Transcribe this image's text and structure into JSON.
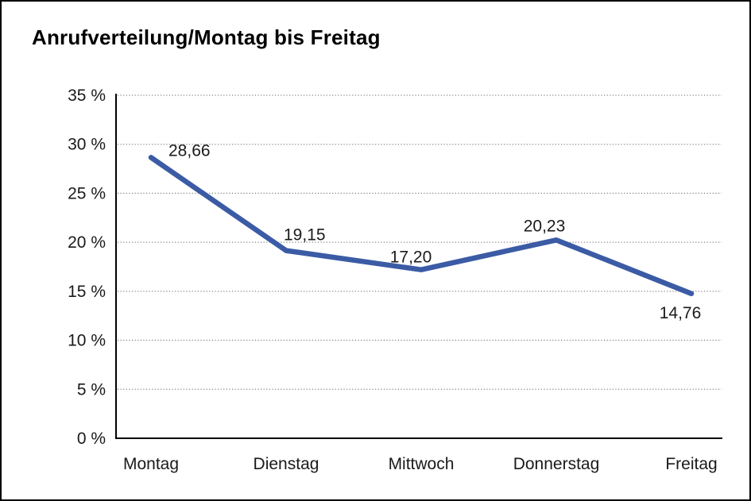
{
  "title": "Anrufverteilung/Montag bis Freitag",
  "colors": {
    "line": "#3B5BA5",
    "axis": "#000000",
    "grid": "#848484",
    "text": "#1a1a1a",
    "background": "#ffffff",
    "frame_border": "#000000"
  },
  "chart_data": {
    "type": "line",
    "title": "Anrufverteilung/Montag bis Freitag",
    "categories": [
      "Montag",
      "Dienstag",
      "Mittwoch",
      "Donnerstag",
      "Freitag"
    ],
    "series": [
      {
        "name": "Anrufverteilung",
        "values": [
          28.66,
          19.15,
          17.2,
          20.23,
          14.76
        ]
      }
    ],
    "data_labels": [
      "28,66",
      "19,15",
      "17,20",
      "20,23",
      "14,76"
    ],
    "ylabel": "",
    "xlabel": "",
    "ylim": [
      0,
      35
    ],
    "y_tick_step": 5,
    "y_tick_labels": [
      "0 %",
      "5 %",
      "10 %",
      "15 %",
      "20 %",
      "25 %",
      "30 %",
      "35 %"
    ],
    "grid": "horizontal-dotted",
    "legend_position": "none",
    "decimal_separator": ","
  }
}
